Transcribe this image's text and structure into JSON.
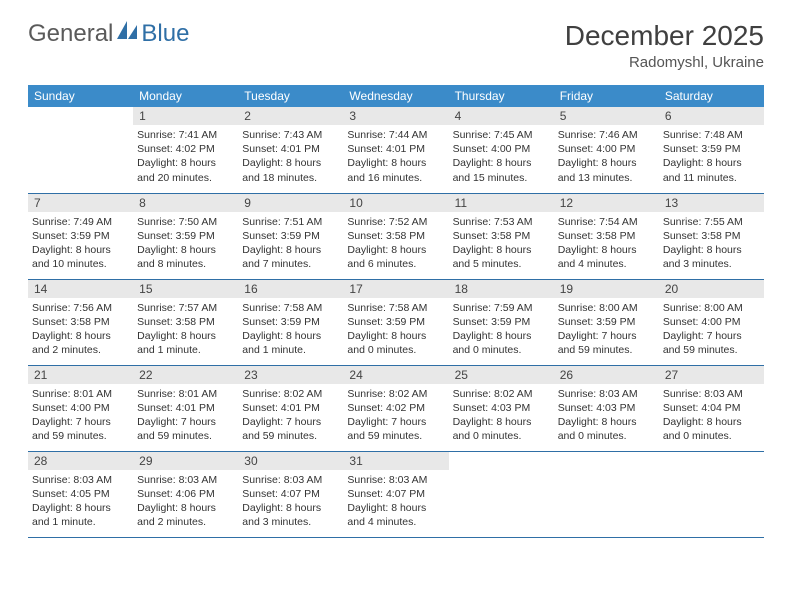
{
  "logo": {
    "text1": "General",
    "text2": "Blue",
    "color1": "#6a6a6a",
    "color2": "#2f6fa6"
  },
  "title": "December 2025",
  "location": "Radomyshl, Ukraine",
  "colors": {
    "header_bg": "#3b8bc9",
    "daynum_bg": "#e8e8e8",
    "row_border": "#2f6fa6"
  },
  "day_headers": [
    "Sunday",
    "Monday",
    "Tuesday",
    "Wednesday",
    "Thursday",
    "Friday",
    "Saturday"
  ],
  "weeks": [
    [
      {
        "n": "",
        "lines": []
      },
      {
        "n": "1",
        "lines": [
          "Sunrise: 7:41 AM",
          "Sunset: 4:02 PM",
          "Daylight: 8 hours",
          "and 20 minutes."
        ]
      },
      {
        "n": "2",
        "lines": [
          "Sunrise: 7:43 AM",
          "Sunset: 4:01 PM",
          "Daylight: 8 hours",
          "and 18 minutes."
        ]
      },
      {
        "n": "3",
        "lines": [
          "Sunrise: 7:44 AM",
          "Sunset: 4:01 PM",
          "Daylight: 8 hours",
          "and 16 minutes."
        ]
      },
      {
        "n": "4",
        "lines": [
          "Sunrise: 7:45 AM",
          "Sunset: 4:00 PM",
          "Daylight: 8 hours",
          "and 15 minutes."
        ]
      },
      {
        "n": "5",
        "lines": [
          "Sunrise: 7:46 AM",
          "Sunset: 4:00 PM",
          "Daylight: 8 hours",
          "and 13 minutes."
        ]
      },
      {
        "n": "6",
        "lines": [
          "Sunrise: 7:48 AM",
          "Sunset: 3:59 PM",
          "Daylight: 8 hours",
          "and 11 minutes."
        ]
      }
    ],
    [
      {
        "n": "7",
        "lines": [
          "Sunrise: 7:49 AM",
          "Sunset: 3:59 PM",
          "Daylight: 8 hours",
          "and 10 minutes."
        ]
      },
      {
        "n": "8",
        "lines": [
          "Sunrise: 7:50 AM",
          "Sunset: 3:59 PM",
          "Daylight: 8 hours",
          "and 8 minutes."
        ]
      },
      {
        "n": "9",
        "lines": [
          "Sunrise: 7:51 AM",
          "Sunset: 3:59 PM",
          "Daylight: 8 hours",
          "and 7 minutes."
        ]
      },
      {
        "n": "10",
        "lines": [
          "Sunrise: 7:52 AM",
          "Sunset: 3:58 PM",
          "Daylight: 8 hours",
          "and 6 minutes."
        ]
      },
      {
        "n": "11",
        "lines": [
          "Sunrise: 7:53 AM",
          "Sunset: 3:58 PM",
          "Daylight: 8 hours",
          "and 5 minutes."
        ]
      },
      {
        "n": "12",
        "lines": [
          "Sunrise: 7:54 AM",
          "Sunset: 3:58 PM",
          "Daylight: 8 hours",
          "and 4 minutes."
        ]
      },
      {
        "n": "13",
        "lines": [
          "Sunrise: 7:55 AM",
          "Sunset: 3:58 PM",
          "Daylight: 8 hours",
          "and 3 minutes."
        ]
      }
    ],
    [
      {
        "n": "14",
        "lines": [
          "Sunrise: 7:56 AM",
          "Sunset: 3:58 PM",
          "Daylight: 8 hours",
          "and 2 minutes."
        ]
      },
      {
        "n": "15",
        "lines": [
          "Sunrise: 7:57 AM",
          "Sunset: 3:58 PM",
          "Daylight: 8 hours",
          "and 1 minute."
        ]
      },
      {
        "n": "16",
        "lines": [
          "Sunrise: 7:58 AM",
          "Sunset: 3:59 PM",
          "Daylight: 8 hours",
          "and 1 minute."
        ]
      },
      {
        "n": "17",
        "lines": [
          "Sunrise: 7:58 AM",
          "Sunset: 3:59 PM",
          "Daylight: 8 hours",
          "and 0 minutes."
        ]
      },
      {
        "n": "18",
        "lines": [
          "Sunrise: 7:59 AM",
          "Sunset: 3:59 PM",
          "Daylight: 8 hours",
          "and 0 minutes."
        ]
      },
      {
        "n": "19",
        "lines": [
          "Sunrise: 8:00 AM",
          "Sunset: 3:59 PM",
          "Daylight: 7 hours",
          "and 59 minutes."
        ]
      },
      {
        "n": "20",
        "lines": [
          "Sunrise: 8:00 AM",
          "Sunset: 4:00 PM",
          "Daylight: 7 hours",
          "and 59 minutes."
        ]
      }
    ],
    [
      {
        "n": "21",
        "lines": [
          "Sunrise: 8:01 AM",
          "Sunset: 4:00 PM",
          "Daylight: 7 hours",
          "and 59 minutes."
        ]
      },
      {
        "n": "22",
        "lines": [
          "Sunrise: 8:01 AM",
          "Sunset: 4:01 PM",
          "Daylight: 7 hours",
          "and 59 minutes."
        ]
      },
      {
        "n": "23",
        "lines": [
          "Sunrise: 8:02 AM",
          "Sunset: 4:01 PM",
          "Daylight: 7 hours",
          "and 59 minutes."
        ]
      },
      {
        "n": "24",
        "lines": [
          "Sunrise: 8:02 AM",
          "Sunset: 4:02 PM",
          "Daylight: 7 hours",
          "and 59 minutes."
        ]
      },
      {
        "n": "25",
        "lines": [
          "Sunrise: 8:02 AM",
          "Sunset: 4:03 PM",
          "Daylight: 8 hours",
          "and 0 minutes."
        ]
      },
      {
        "n": "26",
        "lines": [
          "Sunrise: 8:03 AM",
          "Sunset: 4:03 PM",
          "Daylight: 8 hours",
          "and 0 minutes."
        ]
      },
      {
        "n": "27",
        "lines": [
          "Sunrise: 8:03 AM",
          "Sunset: 4:04 PM",
          "Daylight: 8 hours",
          "and 0 minutes."
        ]
      }
    ],
    [
      {
        "n": "28",
        "lines": [
          "Sunrise: 8:03 AM",
          "Sunset: 4:05 PM",
          "Daylight: 8 hours",
          "and 1 minute."
        ]
      },
      {
        "n": "29",
        "lines": [
          "Sunrise: 8:03 AM",
          "Sunset: 4:06 PM",
          "Daylight: 8 hours",
          "and 2 minutes."
        ]
      },
      {
        "n": "30",
        "lines": [
          "Sunrise: 8:03 AM",
          "Sunset: 4:07 PM",
          "Daylight: 8 hours",
          "and 3 minutes."
        ]
      },
      {
        "n": "31",
        "lines": [
          "Sunrise: 8:03 AM",
          "Sunset: 4:07 PM",
          "Daylight: 8 hours",
          "and 4 minutes."
        ]
      },
      {
        "n": "",
        "lines": []
      },
      {
        "n": "",
        "lines": []
      },
      {
        "n": "",
        "lines": []
      }
    ]
  ]
}
